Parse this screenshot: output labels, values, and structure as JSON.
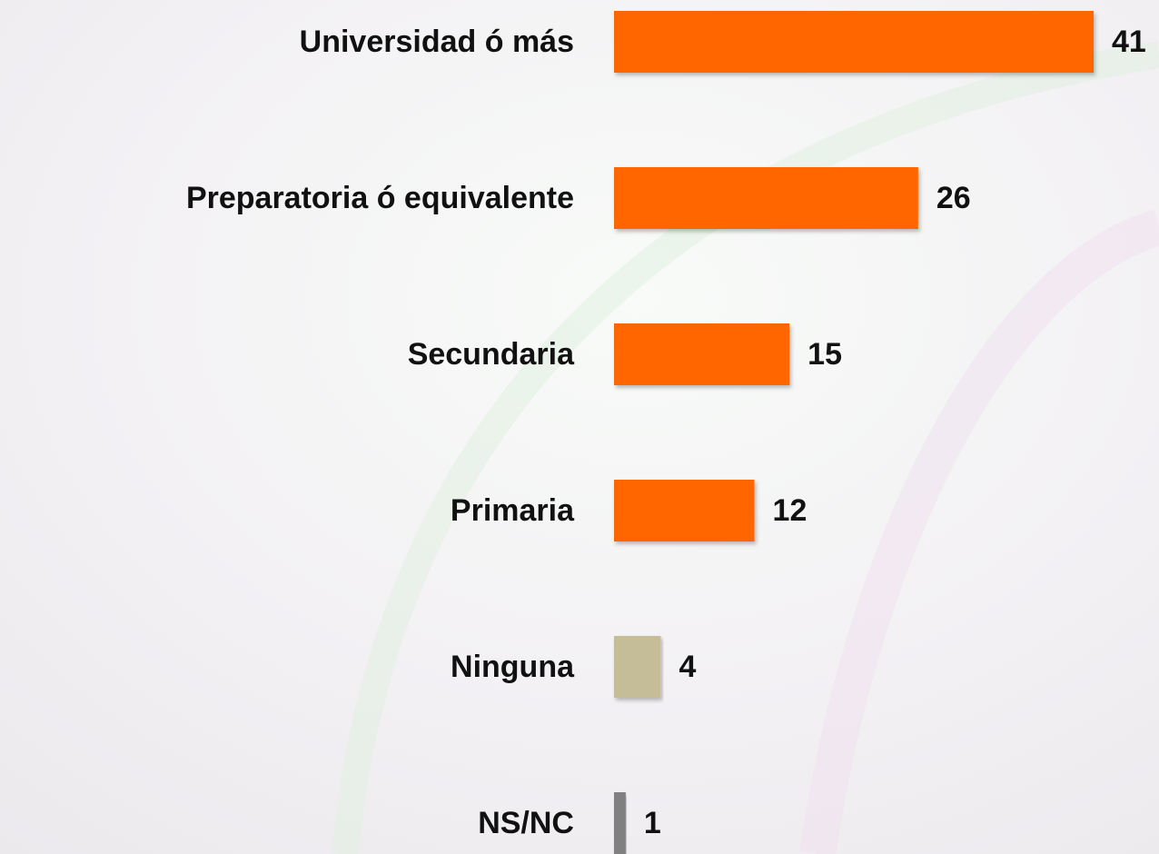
{
  "chart_data": {
    "type": "bar",
    "orientation": "horizontal",
    "categories": [
      "Universidad ó más",
      "Preparatoria ó equivalente",
      "Secundaria",
      "Primaria",
      "Ninguna",
      "NS/NC"
    ],
    "values": [
      41,
      26,
      15,
      12,
      4,
      1
    ],
    "colors": [
      "#ff6600",
      "#ff6600",
      "#ff6600",
      "#ff6600",
      "#c4bd97",
      "#808080"
    ]
  }
}
